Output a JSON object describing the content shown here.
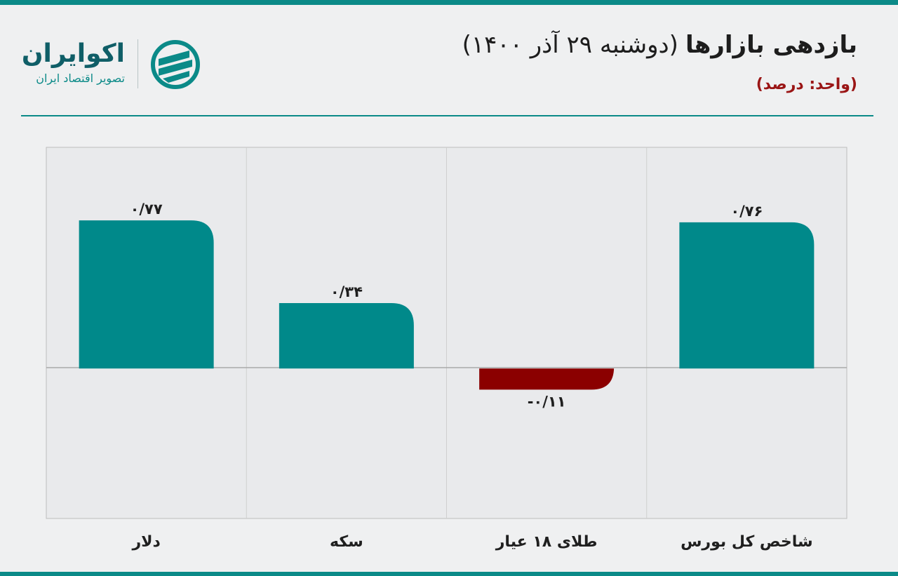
{
  "header": {
    "title": "بازدهی بازارها",
    "date": "(دوشنبه ۲۹ آذر ۱۴۰۰)",
    "unit": "(واحد: درصد)"
  },
  "logo": {
    "name": "اکوایران",
    "tagline": "تصویر اقتصاد ایران"
  },
  "colors": {
    "accent": "#0b8a88",
    "positive": "#00898a",
    "negative": "#8b0000",
    "unit_text": "#9a1515"
  },
  "chart_data": {
    "type": "bar",
    "categories": [
      "شاخص کل بورس",
      "طلای ۱۸ عیار",
      "سکه",
      "دلار"
    ],
    "values": [
      0.76,
      -0.11,
      0.34,
      0.77
    ],
    "value_labels": [
      "۰/۷۶",
      "-۰/۱۱",
      "۰/۳۴",
      "۰/۷۷"
    ],
    "ylim": [
      -0.78,
      1.15
    ],
    "grid": true,
    "legend": "none",
    "category_order": "right-to-left"
  }
}
